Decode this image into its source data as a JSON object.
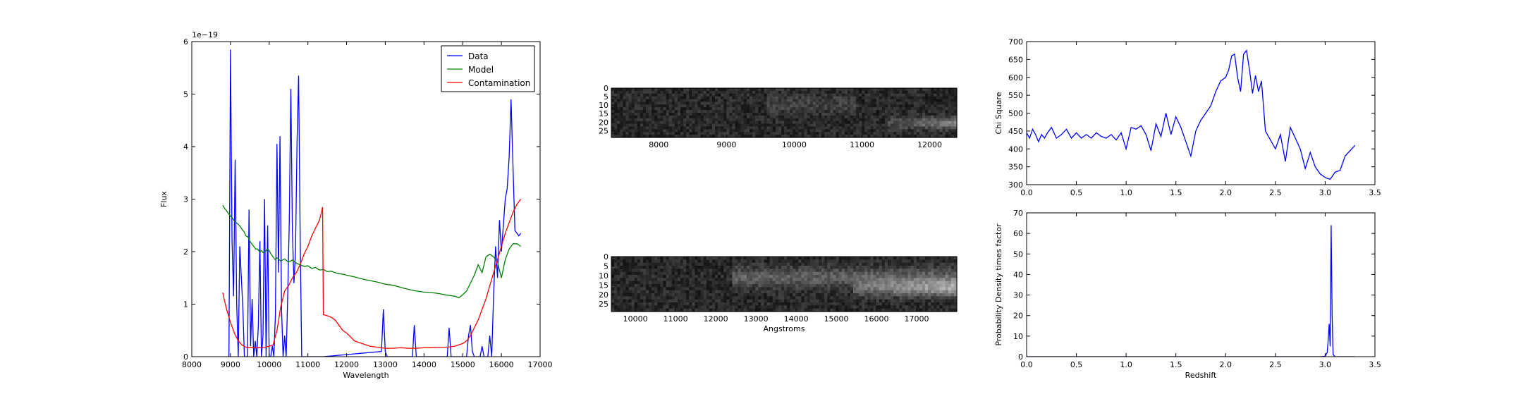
{
  "chart_data": [
    {
      "type": "line",
      "name": "spectrum-fit",
      "xlabel": "Wavelength",
      "ylabel": "Flux",
      "offset_text": "1e−19",
      "xlim": [
        8000,
        17000
      ],
      "ylim": [
        0,
        6
      ],
      "xticks": [
        8000,
        9000,
        10000,
        11000,
        12000,
        13000,
        14000,
        15000,
        16000,
        17000
      ],
      "yticks": [
        0,
        1,
        2,
        3,
        4,
        5,
        6
      ],
      "legend_position": "top-right",
      "series": [
        {
          "name": "Data",
          "color": "#0000ff",
          "x": [
            8920,
            8960,
            9000,
            9040,
            9080,
            9120,
            9160,
            9200,
            9240,
            9280,
            9320,
            9360,
            9400,
            9440,
            9480,
            9520,
            9560,
            9600,
            9640,
            9680,
            9720,
            9760,
            9800,
            9840,
            9880,
            9920,
            9960,
            10000,
            10040,
            10080,
            10120,
            10160,
            10200,
            10240,
            10280,
            10320,
            10360,
            10400,
            10440,
            10480,
            10520,
            10560,
            10600,
            10640,
            10680,
            10720,
            10760,
            10800,
            10840,
            10880,
            10920,
            10960,
            11000,
            11040,
            11080,
            11120,
            11160,
            11200,
            11240,
            11280,
            11320,
            11360,
            11400,
            12900,
            12950,
            13000,
            13050,
            13100,
            13700,
            13750,
            13800,
            13850,
            13900,
            14600,
            14650,
            14700,
            14750,
            15100,
            15150,
            15200,
            15250,
            15300,
            15450,
            15500,
            15550,
            15650,
            15700,
            15750,
            15800,
            15850,
            15900,
            15950,
            16000,
            16050,
            16100,
            16150,
            16200,
            16250,
            16300,
            16350,
            16400,
            16450,
            16500
          ],
          "y": [
            0,
            0,
            5.85,
            2.2,
            1.15,
            3.75,
            1.0,
            0,
            2.1,
            1.5,
            0.9,
            0,
            0,
            0,
            2.8,
            0.2,
            1.1,
            0,
            0.3,
            0,
            0.6,
            2.2,
            0,
            0.4,
            3.0,
            0,
            2.5,
            0,
            0,
            0.2,
            0,
            0.8,
            4.05,
            1.6,
            4.2,
            0.9,
            0,
            0.4,
            0,
            1.2,
            2.6,
            5.1,
            2.4,
            1.4,
            2.0,
            4.1,
            5.35,
            2.3,
            0,
            0,
            0,
            0,
            0,
            0,
            0,
            0,
            0,
            0,
            0,
            0,
            0,
            0,
            0,
            0.1,
            0.9,
            0.1,
            0,
            0,
            0,
            0.6,
            0,
            0,
            0,
            0,
            0.55,
            0,
            0,
            0,
            0.4,
            0.6,
            0.1,
            0,
            0,
            0.2,
            0,
            0,
            0.4,
            0,
            1.2,
            2.1,
            1.5,
            2.6,
            2.0,
            2.5,
            3.0,
            3.2,
            3.8,
            4.9,
            3.6,
            2.4,
            2.35,
            2.3,
            2.35
          ]
        },
        {
          "name": "Model",
          "color": "#008000",
          "x": [
            8800,
            8850,
            8900,
            8950,
            9000,
            9050,
            9100,
            9150,
            9200,
            9250,
            9300,
            9350,
            9400,
            9450,
            9500,
            9550,
            9600,
            9650,
            9700,
            9750,
            9800,
            9850,
            9900,
            9950,
            10000,
            10050,
            10100,
            10150,
            10200,
            10300,
            10400,
            10500,
            10600,
            10700,
            10800,
            10900,
            11000,
            11100,
            11200,
            11300,
            11400,
            11500,
            11600,
            11700,
            11800,
            11900,
            12000,
            12200,
            12400,
            12600,
            12800,
            13000,
            13200,
            13400,
            13600,
            13800,
            14000,
            14200,
            14400,
            14600,
            14800,
            14900,
            15000,
            15100,
            15200,
            15300,
            15400,
            15500,
            15600,
            15700,
            15800,
            15900,
            16000,
            16100,
            16200,
            16300,
            16400,
            16500
          ],
          "y": [
            2.88,
            2.82,
            2.78,
            2.72,
            2.68,
            2.64,
            2.58,
            2.55,
            2.52,
            2.48,
            2.42,
            2.38,
            2.3,
            2.28,
            2.2,
            2.15,
            2.1,
            2.05,
            2.05,
            2.0,
            2.02,
            1.98,
            2.0,
            2.05,
            2.02,
            1.95,
            1.9,
            1.85,
            1.88,
            1.82,
            1.86,
            1.8,
            1.84,
            1.78,
            1.75,
            1.72,
            1.73,
            1.68,
            1.7,
            1.65,
            1.66,
            1.62,
            1.63,
            1.6,
            1.58,
            1.57,
            1.55,
            1.52,
            1.48,
            1.45,
            1.42,
            1.38,
            1.36,
            1.32,
            1.28,
            1.25,
            1.23,
            1.22,
            1.2,
            1.17,
            1.15,
            1.12,
            1.18,
            1.25,
            1.4,
            1.55,
            1.75,
            1.6,
            1.9,
            1.95,
            1.9,
            1.8,
            1.5,
            1.85,
            2.05,
            2.15,
            2.15,
            2.1
          ]
        },
        {
          "name": "Contamination",
          "color": "#ff0000",
          "x": [
            8800,
            8850,
            8900,
            8950,
            9000,
            9100,
            9200,
            9300,
            9400,
            9500,
            9700,
            9900,
            10100,
            10200,
            10300,
            10400,
            10500,
            10600,
            10700,
            10800,
            10900,
            11000,
            11100,
            11200,
            11300,
            11350,
            11380,
            11400,
            11500,
            11600,
            11700,
            11800,
            11900,
            12000,
            12100,
            12200,
            12400,
            12600,
            12800,
            13000,
            13200,
            13400,
            13600,
            13800,
            14000,
            14200,
            14400,
            14600,
            14800,
            15000,
            15100,
            15200,
            15300,
            15400,
            15500,
            15600,
            15700,
            15800,
            15900,
            16000,
            16100,
            16200,
            16300,
            16400,
            16500
          ],
          "y": [
            1.22,
            1.05,
            0.9,
            0.78,
            0.65,
            0.45,
            0.3,
            0.22,
            0.18,
            0.17,
            0.17,
            0.18,
            0.22,
            0.5,
            0.95,
            1.25,
            1.35,
            1.5,
            1.6,
            1.75,
            1.95,
            2.1,
            2.3,
            2.45,
            2.6,
            2.75,
            2.85,
            0.8,
            0.78,
            0.75,
            0.7,
            0.6,
            0.5,
            0.45,
            0.38,
            0.3,
            0.25,
            0.2,
            0.18,
            0.16,
            0.16,
            0.17,
            0.16,
            0.16,
            0.17,
            0.17,
            0.18,
            0.18,
            0.2,
            0.25,
            0.3,
            0.4,
            0.55,
            0.7,
            0.9,
            1.1,
            1.35,
            1.6,
            1.85,
            2.1,
            2.35,
            2.55,
            2.75,
            2.9,
            3.0
          ]
        }
      ]
    },
    {
      "type": "heatmap",
      "name": "2d-spectrum-top",
      "xlim": [
        7300,
        12400
      ],
      "ylim": [
        0,
        29
      ],
      "xticks": [
        8000,
        9000,
        10000,
        11000,
        12000
      ],
      "yticks": [
        0,
        5,
        10,
        15,
        20,
        25
      ],
      "colormap": "gray"
    },
    {
      "type": "heatmap",
      "name": "2d-spectrum-bottom",
      "xlabel": "Angstroms",
      "xlim": [
        9400,
        18000
      ],
      "ylim": [
        0,
        29
      ],
      "xticks": [
        10000,
        11000,
        12000,
        13000,
        14000,
        15000,
        16000,
        17000
      ],
      "yticks": [
        0,
        5,
        10,
        15,
        20,
        25
      ],
      "colormap": "gray"
    },
    {
      "type": "line",
      "name": "chi-square",
      "ylabel": "Chi Square",
      "xlim": [
        0,
        3.5
      ],
      "ylim": [
        300,
        700
      ],
      "xticks": [
        0.0,
        0.5,
        1.0,
        1.5,
        2.0,
        2.5,
        3.0,
        3.5
      ],
      "xtick_labels": [
        "0.0",
        "0.5",
        "1.0",
        "1.5",
        "2.0",
        "2.5",
        "3.0",
        "3.5"
      ],
      "yticks": [
        300,
        350,
        400,
        450,
        500,
        550,
        600,
        650,
        700
      ],
      "series": [
        {
          "color": "#0000ff",
          "x": [
            0.0,
            0.03,
            0.06,
            0.09,
            0.12,
            0.15,
            0.18,
            0.21,
            0.25,
            0.3,
            0.35,
            0.4,
            0.45,
            0.5,
            0.55,
            0.6,
            0.65,
            0.7,
            0.75,
            0.8,
            0.85,
            0.9,
            0.95,
            1.0,
            1.05,
            1.1,
            1.15,
            1.2,
            1.25,
            1.3,
            1.35,
            1.4,
            1.45,
            1.5,
            1.55,
            1.6,
            1.65,
            1.7,
            1.75,
            1.8,
            1.85,
            1.9,
            1.95,
            2.0,
            2.03,
            2.06,
            2.09,
            2.12,
            2.15,
            2.18,
            2.21,
            2.24,
            2.27,
            2.3,
            2.33,
            2.36,
            2.4,
            2.45,
            2.5,
            2.55,
            2.6,
            2.65,
            2.7,
            2.75,
            2.8,
            2.85,
            2.9,
            2.95,
            3.0,
            3.05,
            3.1,
            3.15,
            3.2,
            3.25,
            3.3
          ],
          "y": [
            445,
            430,
            455,
            440,
            420,
            440,
            430,
            445,
            460,
            430,
            440,
            455,
            430,
            445,
            430,
            440,
            430,
            445,
            435,
            430,
            440,
            425,
            445,
            400,
            460,
            455,
            465,
            440,
            395,
            470,
            435,
            500,
            440,
            490,
            460,
            420,
            380,
            450,
            480,
            500,
            520,
            560,
            590,
            600,
            620,
            660,
            665,
            600,
            560,
            665,
            675,
            620,
            555,
            605,
            560,
            590,
            450,
            425,
            400,
            440,
            365,
            460,
            430,
            400,
            345,
            390,
            350,
            330,
            320,
            315,
            335,
            340,
            380,
            395,
            410
          ]
        }
      ]
    },
    {
      "type": "line",
      "name": "probability-density",
      "xlabel": "Redshift",
      "ylabel": "Probability Density times factor",
      "xlim": [
        0,
        3.5
      ],
      "ylim": [
        0,
        70
      ],
      "xticks": [
        0.0,
        0.5,
        1.0,
        1.5,
        2.0,
        2.5,
        3.0,
        3.5
      ],
      "xtick_labels": [
        "0.0",
        "0.5",
        "1.0",
        "1.5",
        "2.0",
        "2.5",
        "3.0",
        "3.5"
      ],
      "yticks": [
        0,
        10,
        20,
        30,
        40,
        50,
        60,
        70
      ],
      "series": [
        {
          "color": "#0000ff",
          "x": [
            0.0,
            2.95,
            3.0,
            3.02,
            3.03,
            3.04,
            3.05,
            3.06,
            3.07,
            3.08,
            3.1,
            3.2,
            3.3
          ],
          "y": [
            0,
            0,
            0.2,
            2,
            8,
            16,
            5,
            64,
            20,
            1,
            0,
            0,
            0
          ]
        }
      ]
    }
  ]
}
